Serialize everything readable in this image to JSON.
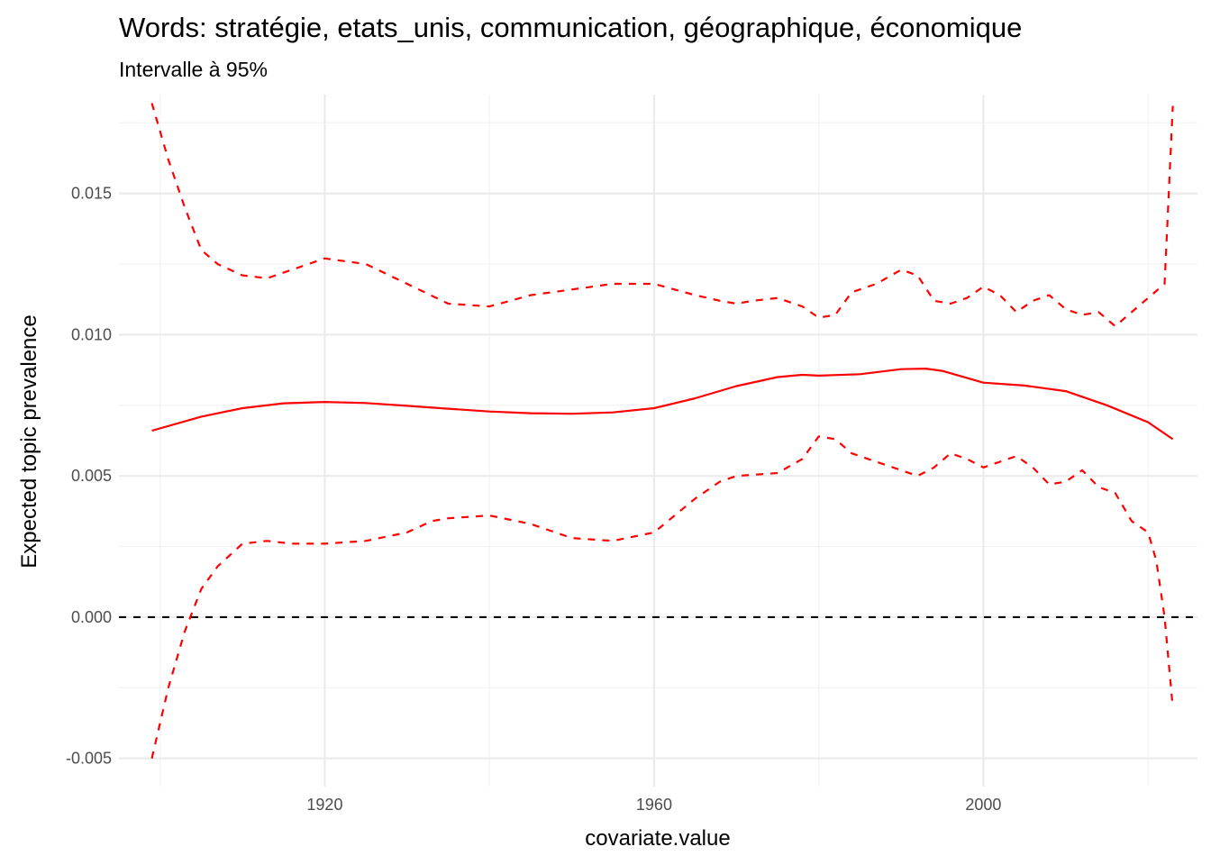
{
  "chart_data": {
    "type": "line",
    "title": "Words: stratégie, etats_unis, communication, géographique, économique",
    "subtitle": "Intervalle à 95%",
    "xlabel": "covariate.value",
    "ylabel": "Expected topic prevalence",
    "xlim": [
      1895,
      2026
    ],
    "ylim": [
      -0.006,
      0.0185
    ],
    "x_ticks": [
      1920,
      1960,
      2000
    ],
    "x_tick_labels": [
      "1920",
      "1960",
      "2000"
    ],
    "y_ticks": [
      -0.005,
      0.0,
      0.005,
      0.01,
      0.015
    ],
    "y_tick_labels": [
      "-0.005",
      "0.000",
      "0.005",
      "0.010",
      "0.015"
    ],
    "grid": true,
    "reference_line": {
      "y": 0,
      "style": "dashed",
      "color": "#000000"
    },
    "colors": {
      "series": "#ff0000"
    },
    "series": [
      {
        "style": "solid",
        "x": [
          1899,
          1905,
          1910,
          1915,
          1920,
          1925,
          1930,
          1935,
          1940,
          1945,
          1950,
          1955,
          1960,
          1965,
          1970,
          1975,
          1978,
          1980,
          1985,
          1990,
          1993,
          1995,
          2000,
          2005,
          2010,
          2015,
          2020,
          2023
        ],
        "y": [
          0.0066,
          0.0071,
          0.0074,
          0.00757,
          0.00762,
          0.00758,
          0.00748,
          0.00738,
          0.00728,
          0.00722,
          0.0072,
          0.00725,
          0.0074,
          0.00775,
          0.00818,
          0.0085,
          0.00858,
          0.00855,
          0.0086,
          0.00878,
          0.0088,
          0.00872,
          0.0083,
          0.0082,
          0.008,
          0.0075,
          0.0069,
          0.0063
        ]
      },
      {
        "style": "dashed",
        "x": [
          1899,
          1901,
          1903,
          1905,
          1907,
          1910,
          1913,
          1916,
          1920,
          1925,
          1930,
          1935,
          1940,
          1945,
          1950,
          1955,
          1960,
          1965,
          1968,
          1970,
          1972,
          1975,
          1978,
          1980,
          1982,
          1984,
          1987,
          1990,
          1992,
          1994,
          1996,
          1998,
          2000,
          2002,
          2004,
          2006,
          2008,
          2010,
          2012,
          2014,
          2016,
          2018,
          2020,
          2022,
          2023
        ],
        "y": [
          0.0182,
          0.0162,
          0.0145,
          0.013,
          0.0125,
          0.0121,
          0.012,
          0.0123,
          0.0127,
          0.0125,
          0.0118,
          0.0111,
          0.011,
          0.0114,
          0.0116,
          0.0118,
          0.0118,
          0.0114,
          0.0112,
          0.0111,
          0.0112,
          0.0113,
          0.011,
          0.0106,
          0.0107,
          0.0115,
          0.0118,
          0.0123,
          0.0121,
          0.0112,
          0.0111,
          0.0113,
          0.0117,
          0.0114,
          0.0108,
          0.0112,
          0.0114,
          0.0109,
          0.0107,
          0.0108,
          0.0103,
          0.0108,
          0.0113,
          0.0118,
          0.0181
        ]
      },
      {
        "style": "dashed",
        "x": [
          1899,
          1901,
          1903,
          1905,
          1907,
          1910,
          1913,
          1916,
          1920,
          1925,
          1930,
          1933,
          1935,
          1940,
          1945,
          1950,
          1955,
          1960,
          1965,
          1968,
          1970,
          1975,
          1978,
          1980,
          1982,
          1984,
          1987,
          1990,
          1992,
          1994,
          1996,
          1998,
          2000,
          2002,
          2004,
          2006,
          2008,
          2010,
          2012,
          2014,
          2016,
          2018,
          2020,
          2021,
          2022,
          2023
        ],
        "y": [
          -0.005,
          -0.0025,
          -0.0005,
          0.001,
          0.0018,
          0.0026,
          0.0027,
          0.0026,
          0.0026,
          0.0027,
          0.003,
          0.0034,
          0.0035,
          0.0036,
          0.0033,
          0.0028,
          0.0027,
          0.003,
          0.0042,
          0.0048,
          0.005,
          0.0051,
          0.0056,
          0.0064,
          0.0063,
          0.0058,
          0.0055,
          0.0052,
          0.005,
          0.0053,
          0.0058,
          0.0056,
          0.0053,
          0.0055,
          0.0057,
          0.0053,
          0.0047,
          0.0048,
          0.0052,
          0.0046,
          0.0044,
          0.0034,
          0.003,
          0.002,
          0.0,
          -0.0032
        ]
      }
    ]
  }
}
